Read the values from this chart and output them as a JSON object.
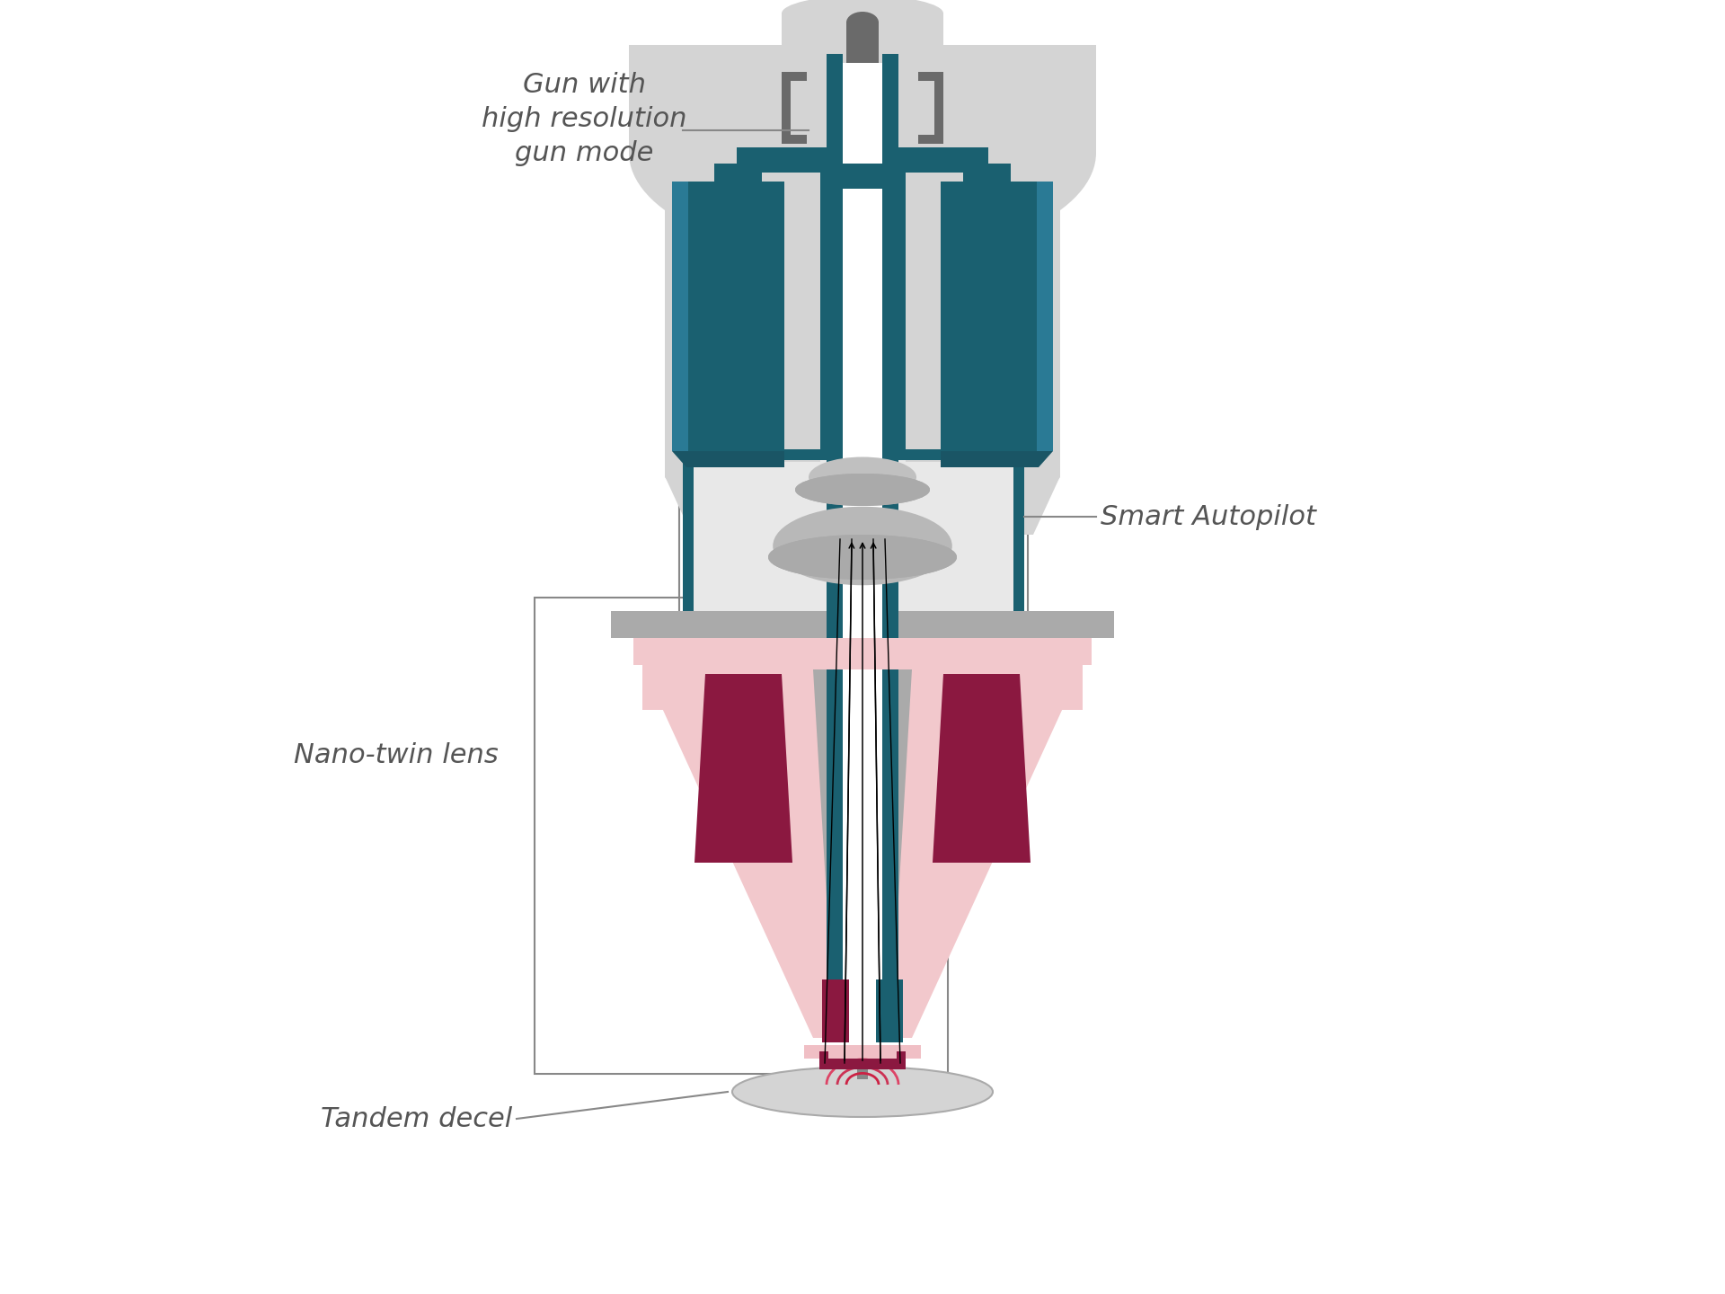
{
  "bg_color": "#ffffff",
  "teal": "#1a6070",
  "teal_light": "#2a7a95",
  "light_gray": "#d4d4d4",
  "mid_gray": "#aaaaaa",
  "dark_gray": "#6a6a6a",
  "very_light_gray": "#e8e8e8",
  "pink_light": "#f2c8cc",
  "pink_outer": "#f0bfc5",
  "dark_red": "#8b1840",
  "gray_lens": "#aaaaaa",
  "gray_lens_dark": "#888888",
  "white": "#ffffff",
  "off_white_box": "#edf2f5",
  "label_gun": "Gun with\nhigh resolution\ngun mode",
  "label_smart": "Smart Autopilot",
  "label_nano": "Nano-twin lens",
  "label_tandem": "Tandem decel"
}
